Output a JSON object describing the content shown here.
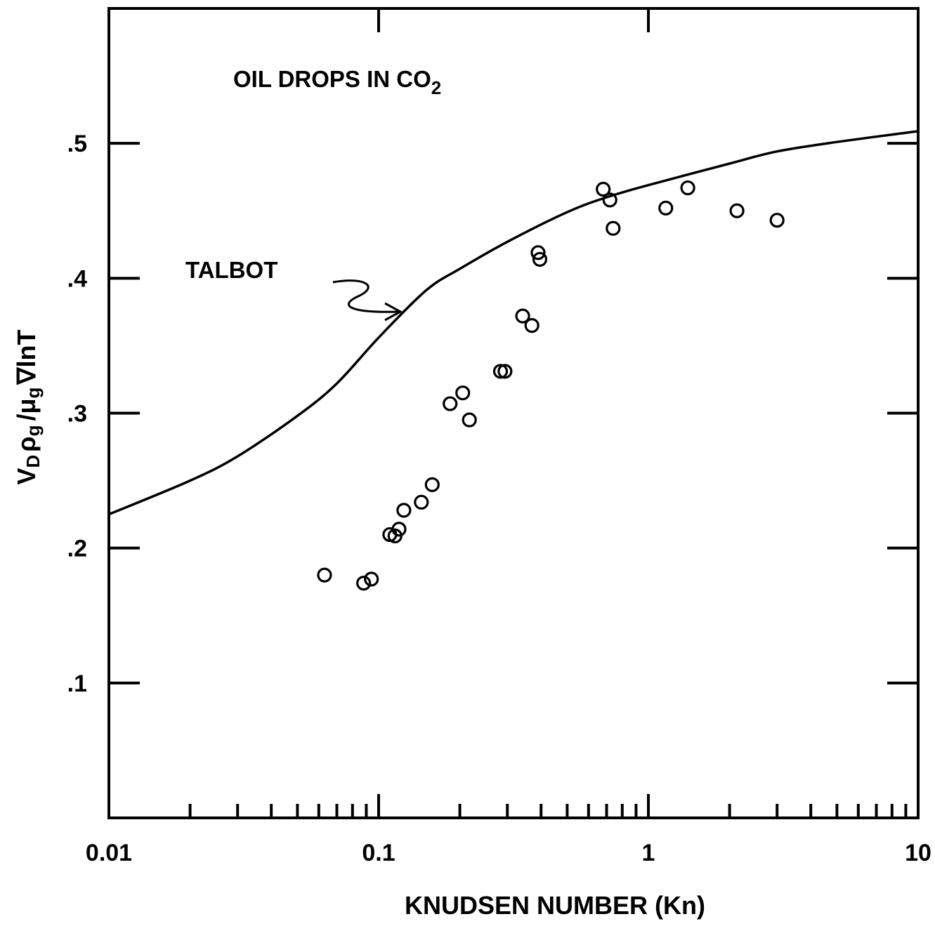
{
  "chart_data": {
    "type": "scatter",
    "title": "",
    "xlabel": "KNUDSEN NUMBER (Kn)",
    "ylabel": {
      "V": "V",
      "V_sub": "D",
      "rho": "ρ",
      "rho_sub": "g",
      "slash": "/",
      "mu": "μ",
      "mu_sub": "g",
      "tail": "∇lnT"
    },
    "x_scale": "log",
    "xlim": [
      0.01,
      10
    ],
    "ylim": [
      0,
      0.6
    ],
    "x_tick_labels": [
      {
        "value": 0.01,
        "label": "0.01"
      },
      {
        "value": 0.1,
        "label": "0.1"
      },
      {
        "value": 1,
        "label": "1"
      },
      {
        "value": 10,
        "label": "10"
      }
    ],
    "y_tick_labels": [
      {
        "value": 0.1,
        "label": ".1"
      },
      {
        "value": 0.2,
        "label": ".2"
      },
      {
        "value": 0.3,
        "label": ".3"
      },
      {
        "value": 0.4,
        "label": ".4"
      },
      {
        "value": 0.5,
        "label": ".5"
      }
    ],
    "annotations": {
      "system_main": "OIL DROPS IN CO",
      "system_sub": "2",
      "curve_label": "TALBOT"
    },
    "grid": false,
    "series": [
      {
        "kind": "line",
        "points": [
          {
            "x": 0.01,
            "y": 0.225
          },
          {
            "x": 0.02,
            "y": 0.25
          },
          {
            "x": 0.03,
            "y": 0.268
          },
          {
            "x": 0.05,
            "y": 0.298
          },
          {
            "x": 0.07,
            "y": 0.322
          },
          {
            "x": 0.1,
            "y": 0.356
          },
          {
            "x": 0.15,
            "y": 0.391
          },
          {
            "x": 0.2,
            "y": 0.407
          },
          {
            "x": 0.3,
            "y": 0.427
          },
          {
            "x": 0.5,
            "y": 0.449
          },
          {
            "x": 0.7,
            "y": 0.46
          },
          {
            "x": 1,
            "y": 0.469
          },
          {
            "x": 2,
            "y": 0.485
          },
          {
            "x": 3,
            "y": 0.494
          },
          {
            "x": 5,
            "y": 0.501
          },
          {
            "x": 10,
            "y": 0.509
          }
        ]
      },
      {
        "kind": "scatter",
        "marker": "open-circle",
        "points": [
          {
            "x": 0.063,
            "y": 0.18
          },
          {
            "x": 0.088,
            "y": 0.174
          },
          {
            "x": 0.094,
            "y": 0.177
          },
          {
            "x": 0.11,
            "y": 0.21
          },
          {
            "x": 0.115,
            "y": 0.209
          },
          {
            "x": 0.119,
            "y": 0.214
          },
          {
            "x": 0.124,
            "y": 0.228
          },
          {
            "x": 0.144,
            "y": 0.234
          },
          {
            "x": 0.158,
            "y": 0.247
          },
          {
            "x": 0.184,
            "y": 0.307
          },
          {
            "x": 0.205,
            "y": 0.315
          },
          {
            "x": 0.217,
            "y": 0.295
          },
          {
            "x": 0.283,
            "y": 0.331
          },
          {
            "x": 0.294,
            "y": 0.331
          },
          {
            "x": 0.342,
            "y": 0.372
          },
          {
            "x": 0.37,
            "y": 0.365
          },
          {
            "x": 0.39,
            "y": 0.419
          },
          {
            "x": 0.396,
            "y": 0.414
          },
          {
            "x": 0.68,
            "y": 0.466
          },
          {
            "x": 0.72,
            "y": 0.458
          },
          {
            "x": 0.74,
            "y": 0.437
          },
          {
            "x": 1.16,
            "y": 0.452
          },
          {
            "x": 1.4,
            "y": 0.467
          },
          {
            "x": 2.13,
            "y": 0.45
          },
          {
            "x": 3.0,
            "y": 0.443
          }
        ]
      }
    ]
  }
}
